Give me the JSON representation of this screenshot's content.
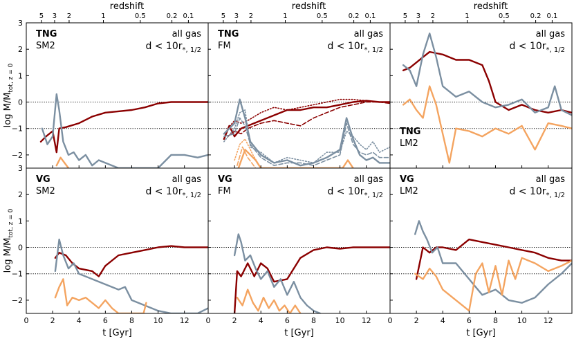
{
  "figure": {
    "top_axis_label": "redshift",
    "redshift_ticks": [
      "5",
      "3",
      "2",
      "1",
      "0.5",
      "0.2",
      "0.1"
    ],
    "redshift_ticks_t": [
      1.15,
      2.15,
      3.25,
      5.85,
      8.65,
      11.05,
      12.3
    ],
    "x_label": "t [Gyr]",
    "y_label": "log M/M",
    "y_label_sub": "tot, z = 0",
    "x_ticks": [
      0,
      2,
      4,
      6,
      8,
      10,
      12
    ],
    "x_tick_labels": [
      "0",
      "2",
      "4",
      "6",
      "8",
      "10",
      "12"
    ],
    "y_ticks": [
      -2,
      -1,
      0,
      1,
      2,
      3
    ],
    "y_tick_labels": [
      "−2",
      "−1",
      "0",
      "1",
      "2",
      "3"
    ],
    "xlim": [
      0,
      13.8
    ],
    "ylim": [
      -2.5,
      3
    ],
    "reference_lines": [
      0,
      -1
    ]
  },
  "colors": {
    "red": "#8b0000",
    "gray": "#7b8fa1",
    "orange": "#f4a460",
    "axis": "#000000"
  },
  "chart_data": [
    {
      "type": "line",
      "label_top": "TNG",
      "label_bottom": "SM2",
      "label_pos": "top-left",
      "gas": "all gas",
      "dist": "d < 10r",
      "dist_sub": "*, 1/2",
      "xlim": [
        0,
        13.8
      ],
      "ylim": [
        -2.5,
        3
      ],
      "series": [
        {
          "name": "red",
          "style": "solid",
          "x": [
            1.1,
            1.5,
            2.0,
            2.3,
            2.5,
            3,
            4,
            5,
            6,
            7,
            8,
            9,
            10,
            11,
            12,
            13,
            13.8
          ],
          "y": [
            -1.5,
            -1.3,
            -1.1,
            -1.9,
            -1.0,
            -0.95,
            -0.8,
            -0.55,
            -0.4,
            -0.35,
            -0.3,
            -0.2,
            -0.05,
            0.0,
            0.0,
            0.0,
            0.0
          ]
        },
        {
          "name": "gray",
          "style": "solid",
          "x": [
            1.2,
            1.6,
            2.0,
            2.3,
            2.5,
            2.8,
            3.2,
            3.6,
            4,
            4.5,
            5,
            5.5,
            6,
            7,
            8,
            9,
            10,
            11,
            12,
            13,
            13.8
          ],
          "y": [
            -1.0,
            -1.6,
            -1.3,
            0.3,
            -0.3,
            -1.5,
            -2.0,
            -1.9,
            -2.2,
            -2.0,
            -2.4,
            -2.2,
            -2.3,
            -2.5,
            -2.5,
            -2.5,
            -2.5,
            -2.0,
            -2.0,
            -2.1,
            -2.0
          ]
        },
        {
          "name": "orange",
          "style": "solid",
          "x": [
            2.3,
            2.6,
            2.9,
            3.2
          ],
          "y": [
            -2.4,
            -2.1,
            -2.3,
            -2.5
          ]
        }
      ]
    },
    {
      "type": "line",
      "label_top": "TNG",
      "label_bottom": "FM",
      "label_pos": "top-left",
      "gas": "all gas",
      "dist": "d < 10r",
      "dist_sub": "*, 1/2",
      "xlim": [
        0,
        13.8
      ],
      "ylim": [
        -2.5,
        3
      ],
      "series": [
        {
          "name": "red",
          "style": "solid",
          "x": [
            1.2,
            1.6,
            2.0,
            2.5,
            3,
            4,
            5,
            6,
            7,
            8,
            9,
            10,
            11,
            12,
            13,
            13.8
          ],
          "y": [
            -1.4,
            -0.9,
            -1.3,
            -1.0,
            -0.9,
            -0.7,
            -0.5,
            -0.3,
            -0.3,
            -0.2,
            -0.2,
            -0.1,
            0.0,
            0.05,
            0.0,
            0.0
          ]
        },
        {
          "name": "red",
          "style": "dotted",
          "x": [
            1.5,
            2.0,
            2.5,
            3,
            4,
            5,
            6,
            7,
            8,
            9,
            10,
            11,
            12,
            13,
            13.8
          ],
          "y": [
            -1.0,
            -0.7,
            -0.8,
            -0.7,
            -0.4,
            -0.2,
            -0.3,
            -0.2,
            -0.1,
            0.0,
            0.1,
            0.1,
            0.05,
            0.0,
            0.0
          ]
        },
        {
          "name": "red",
          "style": "dashed",
          "x": [
            1.5,
            2.0,
            2.5,
            3,
            4,
            5,
            6,
            7,
            8,
            9,
            10,
            11,
            12,
            13,
            13.8
          ],
          "y": [
            -1.3,
            -1.1,
            -1.2,
            -1.0,
            -0.8,
            -0.7,
            -0.8,
            -0.9,
            -0.6,
            -0.4,
            -0.2,
            -0.1,
            0.0,
            0.0,
            -0.05
          ]
        },
        {
          "name": "gray",
          "style": "solid",
          "x": [
            1.2,
            2.0,
            2.4,
            2.8,
            3.2,
            4,
            5,
            6,
            7,
            8,
            9,
            10,
            10.5,
            11,
            11.5,
            12,
            12.5,
            13,
            13.8
          ],
          "y": [
            -1.2,
            -0.8,
            0.1,
            -0.6,
            -1.5,
            -2.0,
            -2.3,
            -2.2,
            -2.4,
            -2.3,
            -2.1,
            -1.8,
            -0.6,
            -1.4,
            -2.0,
            -2.2,
            -2.1,
            -2.3,
            -2.3
          ]
        },
        {
          "name": "gray",
          "style": "dotted",
          "x": [
            1.2,
            2.0,
            2.4,
            2.8,
            3.2,
            4,
            5,
            6,
            7,
            8,
            9,
            10,
            10.5,
            11,
            11.5,
            12,
            12.5,
            13,
            13.8
          ],
          "y": [
            -1.5,
            -1.0,
            -0.4,
            -0.3,
            -1.7,
            -1.9,
            -2.3,
            -2.1,
            -2.2,
            -2.3,
            -1.9,
            -1.9,
            -1.1,
            -1.3,
            -1.6,
            -1.8,
            -1.5,
            -1.9,
            -1.7
          ]
        },
        {
          "name": "gray",
          "style": "dashed",
          "x": [
            1.2,
            2.0,
            2.4,
            2.8,
            3.2,
            4,
            5,
            6,
            7,
            8,
            9,
            10,
            10.5,
            11,
            11.5,
            12,
            12.5,
            13,
            13.8
          ],
          "y": [
            -1.3,
            -1.2,
            -0.6,
            -0.9,
            -1.6,
            -2.1,
            -2.4,
            -2.3,
            -2.3,
            -2.4,
            -2.2,
            -2.0,
            -0.8,
            -1.6,
            -1.9,
            -2.0,
            -1.9,
            -2.1,
            -2.1
          ]
        },
        {
          "name": "orange",
          "style": "solid",
          "x": [
            2.3,
            2.8,
            3.2,
            3.6,
            4.0,
            10.2,
            10.6,
            11.0
          ],
          "y": [
            -2.5,
            -1.8,
            -2.0,
            -2.2,
            -2.5,
            -2.5,
            -2.2,
            -2.5
          ]
        },
        {
          "name": "orange",
          "style": "dotted",
          "x": [
            2.0,
            2.4,
            2.8,
            3.4,
            4.0
          ],
          "y": [
            -2.2,
            -1.6,
            -1.4,
            -2.0,
            -2.5
          ]
        },
        {
          "name": "orange",
          "style": "dashed",
          "x": [
            2.2,
            2.6,
            3.0,
            3.6
          ],
          "y": [
            -2.4,
            -1.7,
            -2.1,
            -2.5
          ]
        }
      ]
    },
    {
      "type": "line",
      "label_top": "TNG",
      "label_bottom": "LM2",
      "label_pos": "bottom-left",
      "gas": "all gas",
      "dist": "d < 10r",
      "dist_sub": "*, 1/2",
      "xlim": [
        0,
        13.8
      ],
      "ylim": [
        -2.5,
        3
      ],
      "series": [
        {
          "name": "red",
          "style": "solid",
          "x": [
            1.0,
            1.5,
            2.0,
            2.5,
            3,
            4,
            5,
            6,
            7,
            7.5,
            8,
            9,
            10,
            11,
            12,
            13,
            13.8
          ],
          "y": [
            1.2,
            1.3,
            1.5,
            1.7,
            1.9,
            1.8,
            1.6,
            1.6,
            1.4,
            0.8,
            0.0,
            -0.3,
            -0.1,
            -0.3,
            -0.4,
            -0.3,
            -0.4
          ]
        },
        {
          "name": "gray",
          "style": "solid",
          "x": [
            1.0,
            1.5,
            2.0,
            2.5,
            3,
            3.5,
            4,
            5,
            6,
            7,
            8,
            9,
            10,
            11,
            12,
            12.5,
            13,
            13.8
          ],
          "y": [
            1.4,
            1.2,
            0.6,
            1.8,
            2.6,
            1.7,
            0.6,
            0.2,
            0.4,
            0.0,
            -0.2,
            -0.1,
            0.1,
            -0.4,
            -0.2,
            0.6,
            -0.3,
            -0.5
          ]
        },
        {
          "name": "orange",
          "style": "solid",
          "x": [
            1.0,
            1.5,
            2.0,
            2.5,
            3,
            3.5,
            4,
            4.5,
            5,
            6,
            7,
            8,
            9,
            10,
            11,
            12,
            13,
            13.8
          ],
          "y": [
            -0.1,
            0.1,
            -0.3,
            -0.6,
            0.6,
            -0.1,
            -1.2,
            -2.3,
            -1.0,
            -1.1,
            -1.3,
            -1.0,
            -1.2,
            -0.9,
            -1.8,
            -0.8,
            -0.9,
            -1.0
          ]
        }
      ]
    },
    {
      "type": "line",
      "label_top": "VG",
      "label_bottom": "SM2",
      "label_pos": "top-left",
      "gas": "all gas",
      "dist": "d < 10r",
      "dist_sub": "*, 1/2",
      "xlim": [
        0,
        13.8
      ],
      "ylim": [
        -2.5,
        3
      ],
      "series": [
        {
          "name": "red",
          "style": "solid",
          "x": [
            2.2,
            2.5,
            3,
            3.5,
            4,
            5,
            5.5,
            6,
            7,
            8,
            9,
            10,
            11,
            12,
            13,
            13.8
          ],
          "y": [
            -0.4,
            -0.2,
            -0.3,
            -0.6,
            -0.8,
            -0.9,
            -1.1,
            -0.7,
            -0.3,
            -0.2,
            -0.1,
            0.0,
            0.05,
            0.0,
            0.0,
            0.0
          ]
        },
        {
          "name": "gray",
          "style": "solid",
          "x": [
            2.2,
            2.5,
            2.8,
            3.2,
            3.6,
            4,
            5,
            6,
            7,
            7.5,
            8,
            9,
            10,
            11,
            12,
            13,
            13.8
          ],
          "y": [
            -0.9,
            0.3,
            -0.3,
            -0.8,
            -0.6,
            -1.0,
            -1.2,
            -1.4,
            -1.6,
            -1.5,
            -2.0,
            -2.2,
            -2.4,
            -2.5,
            -2.5,
            -2.5,
            -2.3
          ]
        },
        {
          "name": "orange",
          "style": "solid",
          "x": [
            2.2,
            2.5,
            2.8,
            3.1,
            3.5,
            4,
            4.5,
            5,
            5.5,
            6,
            6.5,
            7,
            7.5,
            8.9,
            9.1
          ],
          "y": [
            -1.9,
            -1.5,
            -1.2,
            -2.2,
            -1.9,
            -2.0,
            -1.9,
            -2.1,
            -2.3,
            -2.0,
            -2.3,
            -2.5,
            -2.5,
            -2.5,
            -2.1
          ]
        }
      ]
    },
    {
      "type": "line",
      "label_top": "VG",
      "label_bottom": "FM",
      "label_pos": "top-left",
      "gas": "all gas",
      "dist": "d < 10r",
      "dist_sub": "*, 1/2",
      "xlim": [
        0,
        13.8
      ],
      "ylim": [
        -2.5,
        3
      ],
      "series": [
        {
          "name": "red",
          "style": "solid",
          "x": [
            2.0,
            2.2,
            2.5,
            3,
            3.5,
            4,
            4.5,
            5,
            6,
            7,
            8,
            9,
            10,
            11,
            12,
            13,
            13.8
          ],
          "y": [
            -2.5,
            -0.9,
            -1.1,
            -0.6,
            -1.1,
            -0.6,
            -0.8,
            -1.3,
            -1.2,
            -0.4,
            -0.1,
            0.0,
            -0.05,
            0.0,
            0.0,
            0.0,
            0.0
          ]
        },
        {
          "name": "gray",
          "style": "solid",
          "x": [
            2.0,
            2.3,
            2.5,
            2.8,
            3.2,
            3.6,
            4,
            4.5,
            5,
            5.5,
            6,
            6.5,
            7,
            7.5,
            8,
            8.5
          ],
          "y": [
            -0.3,
            0.5,
            0.2,
            -0.5,
            -0.3,
            -0.8,
            -1.2,
            -0.9,
            -1.5,
            -1.2,
            -1.8,
            -1.3,
            -1.9,
            -2.2,
            -2.4,
            -2.5
          ]
        },
        {
          "name": "orange",
          "style": "solid",
          "x": [
            2.2,
            2.6,
            3,
            3.4,
            3.8,
            4.2,
            4.6,
            5,
            5.4,
            5.8,
            6.2,
            6.6,
            7.0
          ],
          "y": [
            -1.9,
            -2.2,
            -1.6,
            -2.1,
            -2.4,
            -1.9,
            -2.3,
            -2.0,
            -2.4,
            -2.2,
            -2.5,
            -2.2,
            -2.5
          ]
        }
      ]
    },
    {
      "type": "line",
      "label_top": "VG",
      "label_bottom": "LM2",
      "label_pos": "top-left",
      "gas": "all gas",
      "dist": "d < 10r",
      "dist_sub": "*, 1/2",
      "xlim": [
        0,
        13.8
      ],
      "ylim": [
        -2.5,
        3
      ],
      "series": [
        {
          "name": "red",
          "style": "solid",
          "x": [
            2.0,
            2.5,
            3,
            3.5,
            4,
            5,
            6,
            7,
            8,
            9,
            10,
            11,
            12,
            13,
            13.8
          ],
          "y": [
            -1.2,
            0.0,
            -0.2,
            0.0,
            0.0,
            -0.1,
            0.3,
            0.2,
            0.1,
            0.0,
            -0.1,
            -0.2,
            -0.4,
            -0.5,
            -0.5
          ]
        },
        {
          "name": "gray",
          "style": "solid",
          "x": [
            1.9,
            2.2,
            2.5,
            2.8,
            3.2,
            3.6,
            4,
            5,
            6,
            7,
            8,
            9,
            10,
            11,
            12,
            13,
            13.8
          ],
          "y": [
            0.5,
            1.0,
            0.6,
            0.3,
            -0.2,
            0.0,
            -0.6,
            -0.6,
            -1.2,
            -1.8,
            -1.6,
            -2.0,
            -2.1,
            -1.9,
            -1.4,
            -1.0,
            -0.6
          ]
        },
        {
          "name": "orange",
          "style": "solid",
          "x": [
            1.9,
            2.5,
            3,
            3.5,
            4,
            5,
            6,
            6.5,
            7,
            7.5,
            8,
            8.5,
            9,
            9.5,
            10,
            11,
            12,
            13,
            13.8
          ],
          "y": [
            -1.0,
            -1.2,
            -0.8,
            -1.1,
            -1.6,
            -2.0,
            -2.4,
            -1.0,
            -0.6,
            -1.7,
            -0.7,
            -1.8,
            -0.5,
            -1.2,
            -0.4,
            -0.6,
            -0.9,
            -0.7,
            -0.5
          ]
        }
      ]
    }
  ]
}
